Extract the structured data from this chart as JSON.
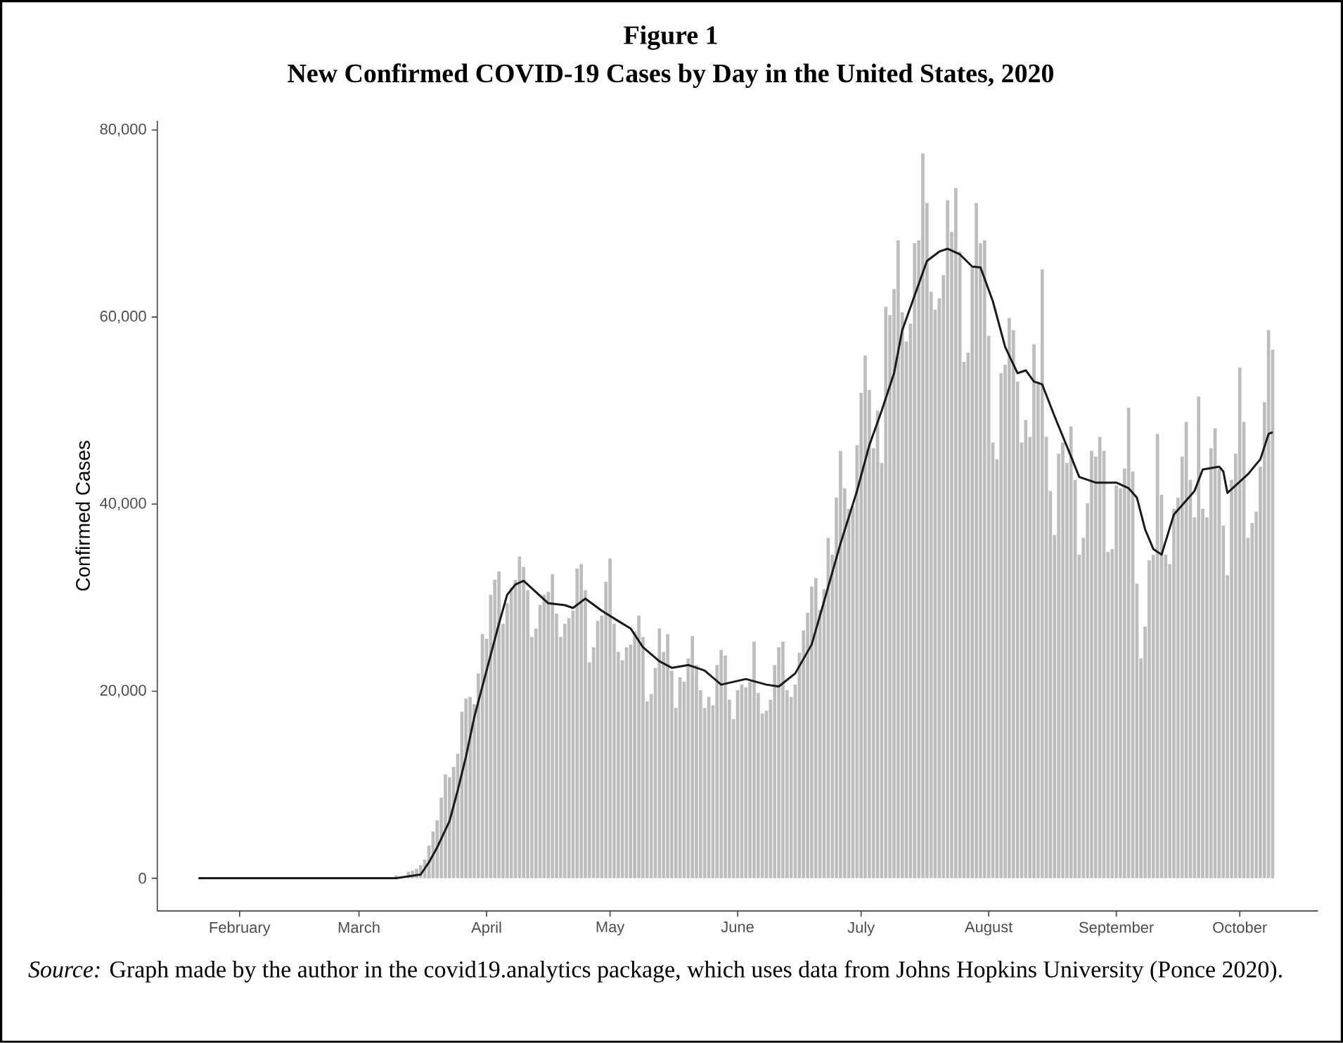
{
  "chart_data": {
    "type": "bar",
    "title": "Figure 1",
    "subtitle": "New Confirmed COVID-19 Cases by Day in the United States, 2020",
    "ylabel": "Confirmed Cases",
    "annotations": [
      "*Source:* Graph made by the author in the covid19.analytics package, which uses data from Johns Hopkins University (Ponce 2020)."
    ],
    "xlim": [
      "2020-01-12",
      "2020-10-20"
    ],
    "ylim": [
      -3500,
      81000
    ],
    "xticks": [
      {
        "value": "2020-02-01",
        "label": "February"
      },
      {
        "value": "2020-03-01",
        "label": "March"
      },
      {
        "value": "2020-04-01",
        "label": "April"
      },
      {
        "value": "2020-05-01",
        "label": "May"
      },
      {
        "value": "2020-06-01",
        "label": "June"
      },
      {
        "value": "2020-07-01",
        "label": "July"
      },
      {
        "value": "2020-08-01",
        "label": "August"
      },
      {
        "value": "2020-09-01",
        "label": "September"
      },
      {
        "value": "2020-10-01",
        "label": "October"
      }
    ],
    "yticks": [
      0,
      {
        "value": 20000,
        "label": "20,000"
      },
      {
        "value": 40000,
        "label": "40,000"
      },
      {
        "value": 60000,
        "label": "60,000"
      },
      {
        "value": 80000,
        "label": "80,000"
      }
    ],
    "series": [
      {
        "color": "#bdbdbd",
        "x": [
          "2020-03-10",
          "2020-03-11",
          "2020-03-12",
          "2020-03-13",
          "2020-03-14",
          "2020-03-15",
          "2020-03-16",
          "2020-03-17",
          "2020-03-18",
          "2020-03-19",
          "2020-03-20",
          "2020-03-21",
          "2020-03-22",
          "2020-03-23",
          "2020-03-24",
          "2020-03-25",
          "2020-03-26",
          "2020-03-27",
          "2020-03-28",
          "2020-03-29",
          "2020-03-30",
          "2020-03-31",
          "2020-04-01",
          "2020-04-02",
          "2020-04-03",
          "2020-04-04",
          "2020-04-05",
          "2020-04-06",
          "2020-04-07",
          "2020-04-08",
          "2020-04-09",
          "2020-04-10",
          "2020-04-11",
          "2020-04-12",
          "2020-04-13",
          "2020-04-14",
          "2020-04-15",
          "2020-04-16",
          "2020-04-17",
          "2020-04-18",
          "2020-04-19",
          "2020-04-20",
          "2020-04-21",
          "2020-04-22",
          "2020-04-23",
          "2020-04-24",
          "2020-04-25",
          "2020-04-26",
          "2020-04-27",
          "2020-04-28",
          "2020-04-29",
          "2020-04-30",
          "2020-05-01",
          "2020-05-02",
          "2020-05-03",
          "2020-05-04",
          "2020-05-05",
          "2020-05-06",
          "2020-05-07",
          "2020-05-08",
          "2020-05-09",
          "2020-05-10",
          "2020-05-11",
          "2020-05-12",
          "2020-05-13",
          "2020-05-14",
          "2020-05-15",
          "2020-05-16",
          "2020-05-17",
          "2020-05-18",
          "2020-05-19",
          "2020-05-20",
          "2020-05-21",
          "2020-05-22",
          "2020-05-23",
          "2020-05-24",
          "2020-05-25",
          "2020-05-26",
          "2020-05-27",
          "2020-05-28",
          "2020-05-29",
          "2020-05-30",
          "2020-05-31",
          "2020-06-01",
          "2020-06-02",
          "2020-06-03",
          "2020-06-04",
          "2020-06-05",
          "2020-06-06",
          "2020-06-07",
          "2020-06-08",
          "2020-06-09",
          "2020-06-10",
          "2020-06-11",
          "2020-06-12",
          "2020-06-13",
          "2020-06-14",
          "2020-06-15",
          "2020-06-16",
          "2020-06-17",
          "2020-06-18",
          "2020-06-19",
          "2020-06-20",
          "2020-06-21",
          "2020-06-22",
          "2020-06-23",
          "2020-06-24",
          "2020-06-25",
          "2020-06-26",
          "2020-06-27",
          "2020-06-28",
          "2020-06-29",
          "2020-06-30",
          "2020-07-01",
          "2020-07-02",
          "2020-07-03",
          "2020-07-04",
          "2020-07-05",
          "2020-07-06",
          "2020-07-07",
          "2020-07-08",
          "2020-07-09",
          "2020-07-10",
          "2020-07-11",
          "2020-07-12",
          "2020-07-13",
          "2020-07-14",
          "2020-07-15",
          "2020-07-16",
          "2020-07-17",
          "2020-07-18",
          "2020-07-19",
          "2020-07-20",
          "2020-07-21",
          "2020-07-22",
          "2020-07-23",
          "2020-07-24",
          "2020-07-25",
          "2020-07-26",
          "2020-07-27",
          "2020-07-28",
          "2020-07-29",
          "2020-07-30",
          "2020-07-31",
          "2020-08-01",
          "2020-08-02",
          "2020-08-03",
          "2020-08-04",
          "2020-08-05",
          "2020-08-06",
          "2020-08-07",
          "2020-08-08",
          "2020-08-09",
          "2020-08-10",
          "2020-08-11",
          "2020-08-12",
          "2020-08-13",
          "2020-08-14",
          "2020-08-15",
          "2020-08-16",
          "2020-08-17",
          "2020-08-18",
          "2020-08-19",
          "2020-08-20",
          "2020-08-21",
          "2020-08-22",
          "2020-08-23",
          "2020-08-24",
          "2020-08-25",
          "2020-08-26",
          "2020-08-27",
          "2020-08-28",
          "2020-08-29",
          "2020-08-30",
          "2020-08-31",
          "2020-09-01",
          "2020-09-02",
          "2020-09-03",
          "2020-09-04",
          "2020-09-05",
          "2020-09-06",
          "2020-09-07",
          "2020-09-08",
          "2020-09-09",
          "2020-09-10",
          "2020-09-11",
          "2020-09-12",
          "2020-09-13",
          "2020-09-14",
          "2020-09-15",
          "2020-09-16",
          "2020-09-17",
          "2020-09-18",
          "2020-09-19",
          "2020-09-20",
          "2020-09-21",
          "2020-09-22",
          "2020-09-23",
          "2020-09-24",
          "2020-09-25",
          "2020-09-26",
          "2020-09-27",
          "2020-09-28",
          "2020-09-29",
          "2020-09-30",
          "2020-10-01",
          "2020-10-02",
          "2020-10-03",
          "2020-10-04",
          "2020-10-05",
          "2020-10-06",
          "2020-10-07",
          "2020-10-08",
          "2020-10-09"
        ],
        "values": [
          300,
          null,
          null,
          700,
          800,
          1000,
          1400,
          2000,
          3500,
          5000,
          6200,
          8600,
          11100,
          10800,
          11900,
          13300,
          17800,
          19200,
          19400,
          18600,
          21900,
          26100,
          25600,
          30300,
          31900,
          32800,
          27200,
          29400,
          31100,
          31900,
          34400,
          33300,
          30800,
          25800,
          26700,
          29200,
          30300,
          30600,
          32500,
          28300,
          25800,
          27200,
          27800,
          28600,
          33100,
          33600,
          30800,
          23100,
          24700,
          27500,
          28100,
          31700,
          34200,
          27200,
          24200,
          23300,
          24700,
          25000,
          26400,
          28100,
          25800,
          18900,
          19700,
          22500,
          26700,
          24200,
          26100,
          22200,
          18200,
          21500,
          21000,
          23500,
          25900,
          22800,
          20100,
          18200,
          19400,
          18500,
          22800,
          24400,
          23800,
          19100,
          17000,
          20100,
          20700,
          20400,
          21000,
          25300,
          19800,
          17600,
          17900,
          19100,
          22800,
          24700,
          25300,
          20100,
          19400,
          20700,
          24100,
          26500,
          28400,
          31200,
          32100,
          28700,
          30900,
          36400,
          34600,
          40700,
          45700,
          41700,
          39500,
          39800,
          46300,
          51900,
          55900,
          52200,
          46000,
          50000,
          44400,
          61100,
          60200,
          63000,
          68200,
          60500,
          57400,
          59300,
          67900,
          68200,
          77500,
          72200,
          62700,
          60800,
          62000,
          64500,
          72500,
          69100,
          73800,
          67000,
          55200,
          56200,
          65400,
          72200,
          67900,
          68200,
          58000,
          46600,
          44800,
          54000,
          54900,
          59900,
          58600,
          53100,
          46600,
          49000,
          47200,
          57100,
          53100,
          65100,
          47200,
          41400,
          36700,
          45400,
          46600,
          44400,
          48300,
          42600,
          34600,
          36400,
          40100,
          45700,
          45100,
          47200,
          45700,
          34900,
          35200,
          42000,
          41700,
          43800,
          50300,
          43500,
          31500,
          23500,
          26900,
          34000,
          34600,
          47500,
          41000,
          34600,
          33600,
          39500,
          40700,
          45100,
          48800,
          42600,
          38600,
          51500,
          39500,
          38600,
          46000,
          48100,
          43800,
          37700,
          32400,
          42600,
          45400,
          54600,
          48800,
          36400,
          38000,
          39200,
          44000,
          50900,
          58600,
          56500
        ]
      },
      {
        "type": "line",
        "color": "#1a1a1a",
        "x": [
          "2020-01-22",
          "2020-02-15",
          "2020-03-01",
          "2020-03-10",
          "2020-03-16",
          "2020-03-18",
          "2020-03-20",
          "2020-03-23",
          "2020-03-25",
          "2020-03-27",
          "2020-03-29",
          "2020-04-01",
          "2020-04-04",
          "2020-04-06",
          "2020-04-08",
          "2020-04-10",
          "2020-04-13",
          "2020-04-16",
          "2020-04-20",
          "2020-04-22",
          "2020-04-25",
          "2020-04-29",
          "2020-05-03",
          "2020-05-06",
          "2020-05-09",
          "2020-05-13",
          "2020-05-16",
          "2020-05-20",
          "2020-05-24",
          "2020-05-28",
          "2020-06-03",
          "2020-06-08",
          "2020-06-11",
          "2020-06-15",
          "2020-06-19",
          "2020-06-22",
          "2020-06-26",
          "2020-06-30",
          "2020-07-03",
          "2020-07-06",
          "2020-07-09",
          "2020-07-11",
          "2020-07-14",
          "2020-07-17",
          "2020-07-20",
          "2020-07-22",
          "2020-07-25",
          "2020-07-28",
          "2020-07-30",
          "2020-08-02",
          "2020-08-05",
          "2020-08-08",
          "2020-08-10",
          "2020-08-12",
          "2020-08-14",
          "2020-08-17",
          "2020-08-21",
          "2020-08-23",
          "2020-08-27",
          "2020-09-01",
          "2020-09-04",
          "2020-09-06",
          "2020-09-08",
          "2020-09-10",
          "2020-09-12",
          "2020-09-15",
          "2020-09-18",
          "2020-09-20",
          "2020-09-22",
          "2020-09-26",
          "2020-09-27",
          "2020-09-28",
          "2020-09-30",
          "2020-10-03",
          "2020-10-06",
          "2020-10-08",
          "2020-10-09"
        ],
        "values": [
          0,
          0,
          0,
          0,
          400,
          1700,
          3300,
          6100,
          9400,
          13000,
          17200,
          22200,
          27200,
          30300,
          31400,
          31800,
          30600,
          29400,
          29200,
          28900,
          29900,
          28600,
          27500,
          26700,
          24700,
          23200,
          22500,
          22800,
          22200,
          20700,
          21300,
          20700,
          20500,
          21900,
          25000,
          29600,
          35800,
          41400,
          46300,
          50000,
          54000,
          58600,
          62300,
          66000,
          67000,
          67300,
          66700,
          65400,
          65300,
          61700,
          56800,
          54000,
          54300,
          53100,
          52800,
          49400,
          45100,
          42900,
          42300,
          42300,
          41700,
          40700,
          37300,
          35200,
          34600,
          38900,
          40400,
          41400,
          43700,
          44000,
          43500,
          41200,
          42000,
          43200,
          44800,
          47500,
          47700
        ]
      }
    ]
  }
}
